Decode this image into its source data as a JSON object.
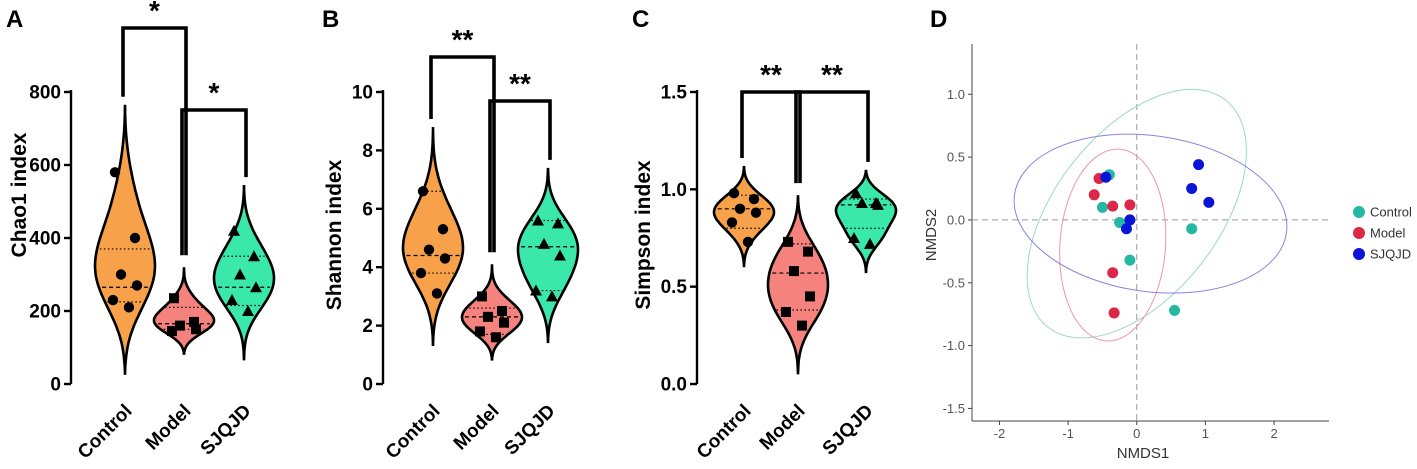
{
  "colors": {
    "Control": "#F7A24A",
    "Model": "#F5827D",
    "SJQJD": "#3BE8AB",
    "nmds_Control": "#25B8A2",
    "nmds_Model": "#DC2748",
    "nmds_SJQJD": "#0A14D9",
    "ell_Control": "#9AD8CC",
    "ell_Model": "#E898AE",
    "ell_SJQJD": "#8C84DA"
  },
  "chart_data": [
    {
      "panel": "A",
      "type": "violin",
      "ylabel": "Chao1 index",
      "ylim": [
        0,
        800
      ],
      "yticks": [
        "0",
        "200",
        "400",
        "600",
        "800"
      ],
      "categories": [
        "Control",
        "Model",
        "SJQJD"
      ],
      "groups": [
        {
          "name": "Control",
          "marker": "circle",
          "points": [
            580,
            400,
            300,
            270,
            230,
            210
          ],
          "median": 265,
          "q1": 225,
          "q3": 370,
          "range": [
            25,
            765
          ]
        },
        {
          "name": "Model",
          "marker": "square",
          "points": [
            235,
            170,
            160,
            150,
            145
          ],
          "median": 165,
          "q1": 150,
          "q3": 210,
          "range": [
            80,
            320
          ]
        },
        {
          "name": "SJQJD",
          "marker": "triangle",
          "points": [
            420,
            350,
            300,
            265,
            230,
            200
          ],
          "median": 265,
          "q1": 215,
          "q3": 350,
          "range": [
            65,
            545
          ]
        }
      ],
      "significance": [
        {
          "pair": [
            "Control",
            "Model"
          ],
          "label": "*"
        },
        {
          "pair": [
            "Model",
            "SJQJD"
          ],
          "label": "*"
        }
      ]
    },
    {
      "panel": "B",
      "type": "violin",
      "ylabel": "Shannon index",
      "ylim": [
        0,
        10
      ],
      "yticks": [
        "0",
        "2",
        "4",
        "6",
        "8",
        "10"
      ],
      "categories": [
        "Control",
        "Model",
        "SJQJD"
      ],
      "groups": [
        {
          "name": "Control",
          "marker": "circle",
          "points": [
            6.6,
            5.3,
            4.6,
            4.3,
            3.8,
            3.1
          ],
          "median": 4.4,
          "q1": 3.8,
          "q3": 6.6,
          "range": [
            1.3,
            8.8
          ]
        },
        {
          "name": "Model",
          "marker": "square",
          "points": [
            3.0,
            2.5,
            2.3,
            2.1,
            1.8,
            1.6
          ],
          "median": 2.3,
          "q1": 1.7,
          "q3": 2.6,
          "range": [
            0.8,
            4.1
          ]
        },
        {
          "name": "SJQJD",
          "marker": "triangle",
          "points": [
            5.6,
            5.5,
            4.8,
            4.4,
            3.2,
            3.0
          ],
          "median": 4.7,
          "q1": 3.2,
          "q3": 5.6,
          "range": [
            1.4,
            7.4
          ]
        }
      ],
      "significance": [
        {
          "pair": [
            "Control",
            "Model"
          ],
          "label": "**"
        },
        {
          "pair": [
            "Model",
            "SJQJD"
          ],
          "label": "**"
        }
      ]
    },
    {
      "panel": "C",
      "type": "violin",
      "ylabel": "Simpson index",
      "ylim": [
        0,
        1.5
      ],
      "yticks": [
        "0.0",
        "0.5",
        "1.0",
        "1.5"
      ],
      "categories": [
        "Control",
        "Model",
        "SJQJD"
      ],
      "groups": [
        {
          "name": "Control",
          "marker": "circle",
          "points": [
            0.98,
            0.95,
            0.9,
            0.88,
            0.83,
            0.73
          ],
          "median": 0.9,
          "q1": 0.8,
          "q3": 0.97,
          "range": [
            0.6,
            1.12
          ]
        },
        {
          "name": "Model",
          "marker": "square",
          "points": [
            0.73,
            0.68,
            0.58,
            0.45,
            0.37,
            0.3
          ],
          "median": 0.57,
          "q1": 0.38,
          "q3": 0.72,
          "range": [
            0.05,
            0.97
          ]
        },
        {
          "name": "SJQJD",
          "marker": "triangle",
          "points": [
            0.98,
            0.93,
            0.93,
            0.92,
            0.75,
            0.72
          ],
          "median": 0.92,
          "q1": 0.8,
          "q3": 0.95,
          "range": [
            0.57,
            1.1
          ]
        }
      ],
      "significance": [
        {
          "pair": [
            "Control",
            "Model"
          ],
          "label": "**"
        },
        {
          "pair": [
            "Model",
            "SJQJD"
          ],
          "label": "**"
        }
      ]
    },
    {
      "panel": "D",
      "type": "scatter",
      "xlabel": "NMDS1",
      "ylabel": "NMDS2",
      "xlim": [
        -2.4,
        2.8
      ],
      "ylim": [
        -1.6,
        1.4
      ],
      "xticks": [
        "-2",
        "-1",
        "0",
        "1",
        "2"
      ],
      "yticks": [
        "1.0",
        "0.5",
        "0.0",
        "-0.5",
        "-1.0",
        "-1.5"
      ],
      "legend": [
        "Control",
        "Model",
        "SJQJD"
      ],
      "legend_position": "right",
      "series": [
        {
          "name": "Control",
          "x": [
            -0.4,
            -0.5,
            -0.1,
            0.8,
            -0.25,
            0.55
          ],
          "y": [
            0.36,
            0.1,
            -0.32,
            -0.07,
            -0.02,
            -0.72
          ]
        },
        {
          "name": "Model",
          "x": [
            -0.55,
            -0.62,
            -0.35,
            -0.1,
            -0.35,
            -0.33
          ],
          "y": [
            0.33,
            0.2,
            0.11,
            0.12,
            -0.42,
            -0.74
          ]
        },
        {
          "name": "SJQJD",
          "x": [
            0.9,
            0.8,
            1.05,
            -0.45,
            -0.15,
            -0.1
          ],
          "y": [
            0.44,
            0.25,
            0.14,
            0.34,
            -0.07,
            0.0
          ]
        }
      ],
      "ellipses": [
        {
          "name": "Control",
          "cx": 0.0,
          "cy": 0.05,
          "rx": 2.1,
          "ry": 0.65,
          "angle_deg": -52
        },
        {
          "name": "Model",
          "cx": -0.35,
          "cy": -0.2,
          "rx": 1.4,
          "ry": 0.42,
          "angle_deg": -86
        },
        {
          "name": "SJQJD",
          "cx": 0.2,
          "cy": 0.05,
          "rx": 2.0,
          "ry": 0.62,
          "angle_deg": 8
        }
      ]
    }
  ]
}
